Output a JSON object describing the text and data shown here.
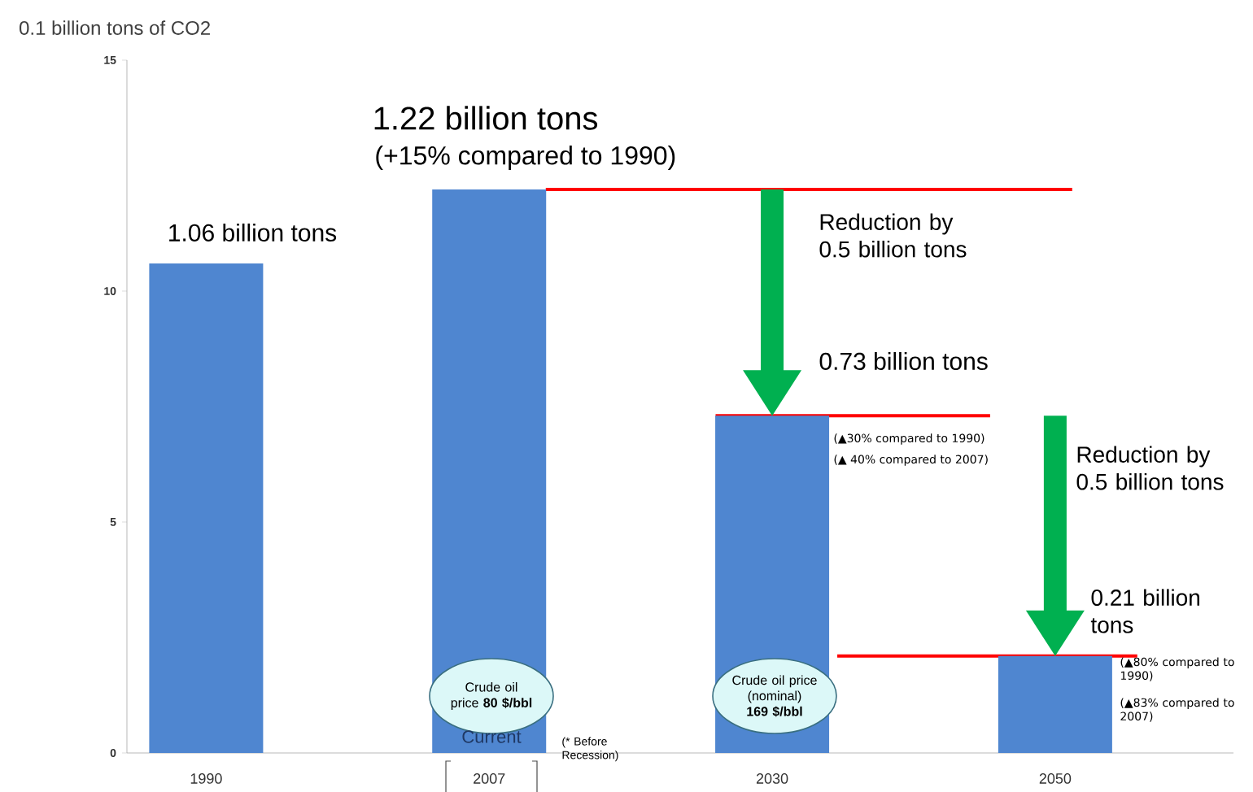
{
  "chart_data": {
    "type": "bar",
    "ylabel": "0.1 billion tons of CO2",
    "categories": [
      "1990",
      "2007",
      "2030",
      "2050"
    ],
    "ylim": [
      0,
      15
    ],
    "yticks": [
      0,
      5,
      10,
      15
    ],
    "series": [
      {
        "color": "#4f86d0",
        "values": [
          10.6,
          12.2,
          7.3,
          2.1
        ]
      }
    ],
    "ref_lines": [
      {
        "axis": "y",
        "value": 12.2,
        "color": "#ff0000"
      },
      {
        "axis": "y",
        "value": 7.3,
        "color": "#ff0000"
      },
      {
        "axis": "y",
        "value": 2.1,
        "color": "#ff0000"
      }
    ],
    "annotations": [
      {
        "text": "1.06 billion tons",
        "x": "1990",
        "y": 10.6
      },
      {
        "text": "1.22 billion tons",
        "x": "2007",
        "y": 12.2
      },
      "(+15% compared to 1990)",
      "Reduction by 0.5 billion tons",
      "0.73 billion tons",
      "(▲30% compared to 1990)",
      "(▲ 40% compared to 2007)",
      "Reduction by 0.5 billion tons",
      "0.21 billion tons",
      "(▲80% compared to 1990)",
      "(▲83% compared to 2007)",
      "Crude oil price **80 $/bbl**",
      "Crude oil price (nominal) **169 $/bbl**",
      "Current",
      "(* Before Recession)"
    ]
  }
}
